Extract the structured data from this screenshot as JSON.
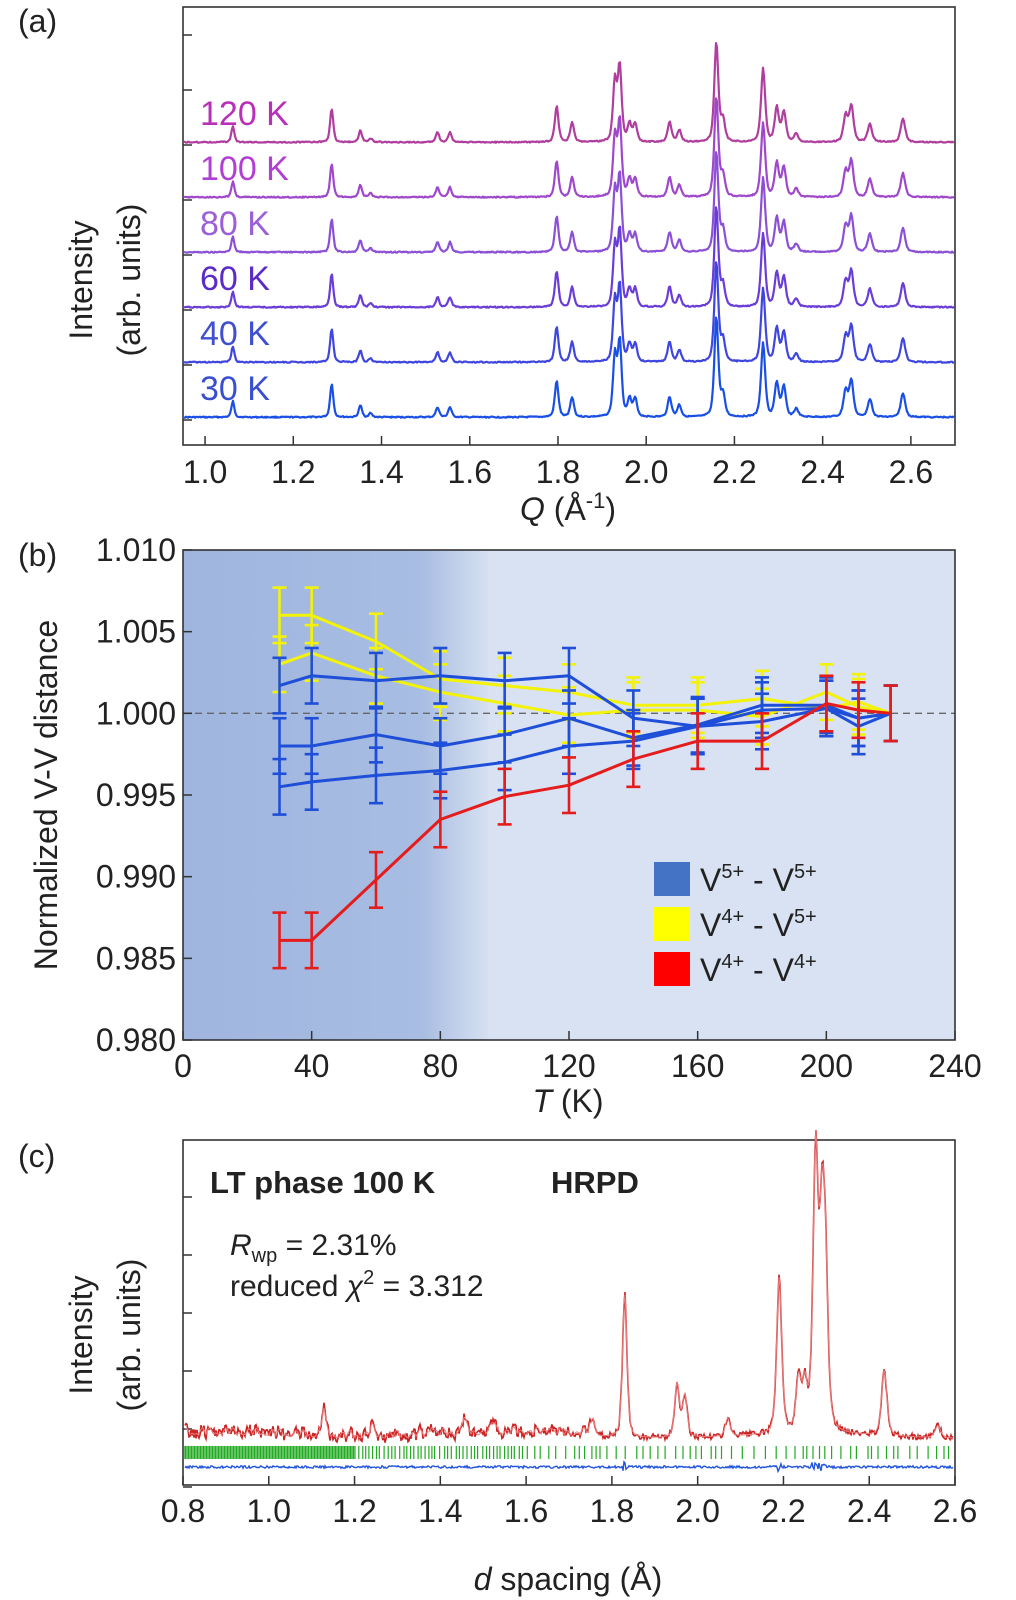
{
  "chart_data": [
    {
      "type": "line",
      "panel_label": "(a)",
      "xlabel_italic": "Q",
      "xlabel_rest": " (Å",
      "xlabel_sup": "-1",
      "xlabel_close": ")",
      "ylabel_line1": "Intensity",
      "ylabel_line2": "(arb. units)",
      "xlim": [
        0.95,
        2.7
      ],
      "xticks": [
        "1.0",
        "1.2",
        "1.4",
        "1.6",
        "1.8",
        "2.0",
        "2.2",
        "2.4",
        "2.6"
      ],
      "xtick_values": [
        1.0,
        1.2,
        1.4,
        1.6,
        1.8,
        2.0,
        2.2,
        2.4,
        2.6
      ],
      "peaks": [
        {
          "q": 1.063,
          "h": 0.16
        },
        {
          "q": 1.287,
          "h": 0.34
        },
        {
          "q": 1.352,
          "h": 0.12
        },
        {
          "q": 1.375,
          "h": 0.04
        },
        {
          "q": 1.527,
          "h": 0.1
        },
        {
          "q": 1.555,
          "h": 0.1
        },
        {
          "q": 1.797,
          "h": 0.36
        },
        {
          "q": 1.832,
          "h": 0.2
        },
        {
          "q": 1.929,
          "h": 0.6
        },
        {
          "q": 1.94,
          "h": 0.75
        },
        {
          "q": 1.962,
          "h": 0.18
        },
        {
          "q": 1.975,
          "h": 0.18
        },
        {
          "q": 2.053,
          "h": 0.2
        },
        {
          "q": 2.075,
          "h": 0.12
        },
        {
          "q": 2.159,
          "h": 1.0
        },
        {
          "q": 2.174,
          "h": 0.22
        },
        {
          "q": 2.265,
          "h": 0.74
        },
        {
          "q": 2.296,
          "h": 0.34
        },
        {
          "q": 2.312,
          "h": 0.3
        },
        {
          "q": 2.34,
          "h": 0.08
        },
        {
          "q": 2.452,
          "h": 0.26
        },
        {
          "q": 2.465,
          "h": 0.36
        },
        {
          "q": 2.507,
          "h": 0.18
        },
        {
          "q": 2.582,
          "h": 0.24
        }
      ],
      "series": [
        {
          "name": "30 K",
          "color": "#1a4fe6",
          "label_color": "#3a4fd0"
        },
        {
          "name": "40 K",
          "color": "#3f46e0",
          "label_color": "#3f4fcf"
        },
        {
          "name": "60 K",
          "color": "#6a3dd8",
          "label_color": "#5a2bc6"
        },
        {
          "name": "80 K",
          "color": "#8b50d6",
          "label_color": "#9b5fd8"
        },
        {
          "name": "100 K",
          "color": "#a048cc",
          "label_color": "#b23fd4"
        },
        {
          "name": "120 K",
          "color": "#b03e9e",
          "label_color": "#b82fb8"
        }
      ]
    },
    {
      "type": "line",
      "panel_label": "(b)",
      "xlabel_italic": "T",
      "xlabel_rest": " (K)",
      "ylabel": "Normalized V-V distance",
      "xlim": [
        0,
        240
      ],
      "ylim": [
        0.98,
        1.01
      ],
      "xticks": [
        "0",
        "40",
        "80",
        "120",
        "160",
        "200",
        "240"
      ],
      "xtick_values": [
        0,
        40,
        80,
        120,
        160,
        200,
        240
      ],
      "yticks": [
        "0.980",
        "0.985",
        "0.990",
        "0.995",
        "1.000",
        "1.005",
        "1.010"
      ],
      "ytick_values": [
        0.98,
        0.985,
        0.99,
        0.995,
        1.0,
        1.005,
        1.01
      ],
      "reference_line": 1.0,
      "shaded_region_until": 95,
      "legend": [
        {
          "label": "V",
          "sup1": "5+",
          "mid": " - V",
          "sup2": "5+",
          "color": "#4472c4"
        },
        {
          "label": "V",
          "sup1": "4+",
          "mid": " - V",
          "sup2": "5+",
          "color": "#ffff00"
        },
        {
          "label": "V",
          "sup1": "4+",
          "mid": " - V",
          "sup2": "4+",
          "color": "#ff0000"
        }
      ],
      "series": [
        {
          "name": "V4+ - V5+ (a)",
          "color": "#f2f20a",
          "x": [
            30,
            40,
            60,
            80,
            100,
            120,
            140,
            160,
            180,
            200,
            210,
            220
          ],
          "y": [
            1.006,
            1.006,
            1.0044,
            1.0021,
            1.0017,
            1.0013,
            1.0005,
            1.0005,
            1.0009,
            1.0003,
            1.0007,
            1.0
          ]
        },
        {
          "name": "V4+ - V5+ (b)",
          "color": "#f2f20a",
          "x": [
            30,
            40,
            60,
            80,
            100,
            120,
            140,
            160,
            180,
            200,
            210,
            220
          ],
          "y": [
            1.003,
            1.0037,
            1.0023,
            1.0013,
            1.0006,
            0.9999,
            1.0002,
            1.0002,
            0.9998,
            1.0013,
            1.0004,
            1.0
          ]
        },
        {
          "name": "V5+ - V5+ (a)",
          "color": "#1f4fd8",
          "x": [
            30,
            40,
            60,
            80,
            100,
            120,
            140,
            160,
            180,
            200,
            210,
            220
          ],
          "y": [
            1.0017,
            1.0023,
            1.002,
            1.0023,
            1.002,
            1.0023,
            0.9997,
            0.9992,
            1.0002,
            1.0003,
            0.9992,
            1.0
          ]
        },
        {
          "name": "V5+ - V5+ (b)",
          "color": "#1f4fd8",
          "x": [
            30,
            40,
            60,
            80,
            100,
            120,
            140,
            160,
            180,
            200,
            210,
            220
          ],
          "y": [
            0.998,
            0.998,
            0.9987,
            0.998,
            0.9987,
            0.9997,
            0.9985,
            0.9993,
            1.0005,
            1.0005,
            0.9997,
            1.0
          ]
        },
        {
          "name": "V5+ - V5+ (c)",
          "color": "#1f4fd8",
          "x": [
            30,
            40,
            60,
            80,
            100,
            120,
            140,
            160,
            180,
            200,
            210,
            220
          ],
          "y": [
            0.9955,
            0.9958,
            0.9962,
            0.9965,
            0.997,
            0.998,
            0.9983,
            0.9992,
            0.9995,
            1.0003,
            0.9997,
            1.0
          ]
        },
        {
          "name": "V4+ - V4+",
          "color": "#e51c1c",
          "x": [
            30,
            40,
            60,
            80,
            100,
            120,
            140,
            160,
            180,
            200,
            210,
            220
          ],
          "y": [
            0.9861,
            0.9861,
            0.9898,
            0.9935,
            0.9949,
            0.9956,
            0.9972,
            0.9983,
            0.9983,
            1.0006,
            1.0002,
            1.0
          ]
        }
      ],
      "error": 0.0017
    },
    {
      "type": "line",
      "panel_label": "(c)",
      "xlabel_italic": "d",
      "xlabel_rest": " spacing (Å)",
      "ylabel_line1": "Intensity",
      "ylabel_line2": "(arb. units)",
      "title_left": "LT phase 100 K",
      "title_right": "HRPD",
      "rwp_symbol": "R",
      "rwp_sub": "wp",
      "rwp_value": " = 2.31%",
      "chi_prefix": "reduced ",
      "chi_symbol": "χ",
      "chi_sup": "2",
      "chi_value": " = 3.312",
      "xlim": [
        0.8,
        2.6
      ],
      "xticks": [
        "0.8",
        "1.0",
        "1.2",
        "1.4",
        "1.6",
        "1.8",
        "2.0",
        "2.2",
        "2.4",
        "2.6"
      ],
      "xtick_values": [
        0.8,
        1.0,
        1.2,
        1.4,
        1.6,
        1.8,
        2.0,
        2.2,
        2.4,
        2.6
      ],
      "observed_color": "#cc2222",
      "fit_color": "#e88080",
      "ticks_color": "#22aa22",
      "difference_color": "#2255dd",
      "peaks": [
        {
          "d": 1.128,
          "h": 0.09
        },
        {
          "d": 1.24,
          "h": 0.03
        },
        {
          "d": 1.38,
          "h": 0.03
        },
        {
          "d": 1.455,
          "h": 0.05
        },
        {
          "d": 1.525,
          "h": 0.035
        },
        {
          "d": 1.655,
          "h": 0.02
        },
        {
          "d": 1.755,
          "h": 0.06
        },
        {
          "d": 1.83,
          "h": 0.48
        },
        {
          "d": 1.952,
          "h": 0.18
        },
        {
          "d": 1.97,
          "h": 0.14
        },
        {
          "d": 2.07,
          "h": 0.06
        },
        {
          "d": 2.19,
          "h": 0.52
        },
        {
          "d": 2.235,
          "h": 0.17
        },
        {
          "d": 2.25,
          "h": 0.15
        },
        {
          "d": 2.275,
          "h": 0.92
        },
        {
          "d": 2.29,
          "h": 0.6
        },
        {
          "d": 2.298,
          "h": 0.45
        },
        {
          "d": 2.435,
          "h": 0.22
        },
        {
          "d": 2.56,
          "h": 0.04
        }
      ]
    }
  ]
}
